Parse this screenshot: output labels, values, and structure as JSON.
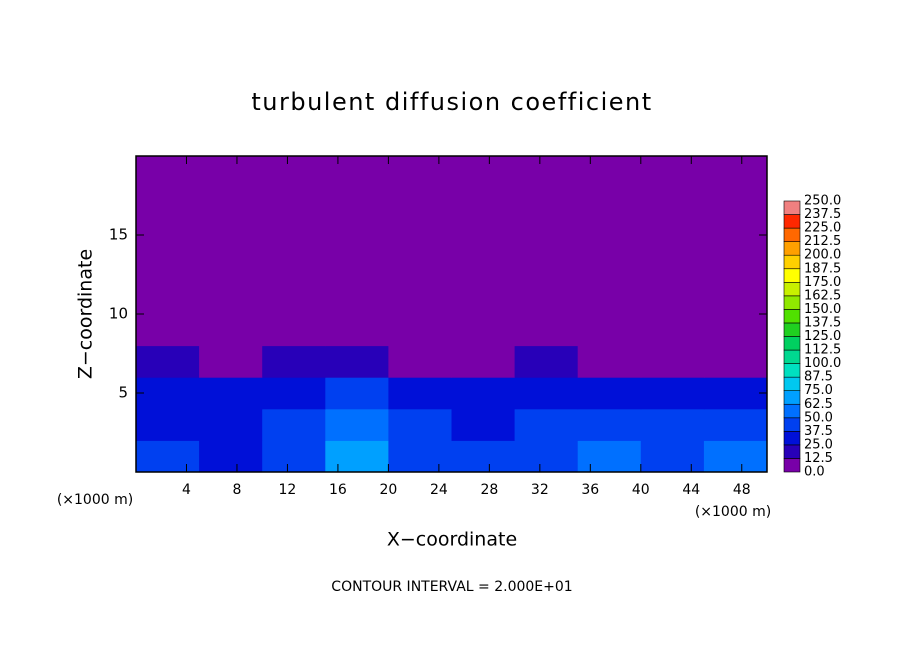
{
  "chart_data": {
    "type": "contour",
    "title": "turbulent diffusion coefficient",
    "xlabel": "X−coordinate",
    "ylabel": "Z−coordinate",
    "x_unit_labels": [
      "(×1000 m)",
      "(×1000 m)"
    ],
    "annotation": "CONTOUR INTERVAL = 2.000E+01",
    "xlim": [
      0,
      50
    ],
    "xticks": [
      4,
      8,
      12,
      16,
      20,
      24,
      28,
      32,
      36,
      40,
      44,
      48
    ],
    "ylim": [
      0,
      20
    ],
    "yticks": [
      5,
      10,
      15
    ],
    "x_edges": [
      0,
      5,
      10,
      15,
      20,
      25,
      30,
      35,
      40,
      45,
      50
    ],
    "z_edges": [
      0,
      2,
      4,
      6,
      8,
      20
    ],
    "values": [
      [
        40,
        35,
        45,
        70,
        45,
        40,
        45,
        50,
        45,
        50
      ],
      [
        35,
        30,
        40,
        55,
        40,
        35,
        40,
        45,
        40,
        40
      ],
      [
        30,
        25,
        35,
        40,
        30,
        30,
        35,
        30,
        30,
        35
      ],
      [
        15,
        10,
        15,
        20,
        5,
        5,
        20,
        10,
        5,
        10
      ],
      [
        0,
        0,
        0,
        0,
        0,
        0,
        0,
        0,
        0,
        0
      ]
    ],
    "levels": [
      {
        "value": 0,
        "label": "0.0"
      },
      {
        "value": 12.5,
        "label": "12.5"
      },
      {
        "value": 25,
        "label": "25.0"
      },
      {
        "value": 37.5,
        "label": "37.5"
      },
      {
        "value": 50,
        "label": "50.0"
      },
      {
        "value": 62.5,
        "label": "62.5"
      },
      {
        "value": 75,
        "label": "75.0"
      },
      {
        "value": 87.5,
        "label": "87.5"
      },
      {
        "value": 100,
        "label": "100.0"
      },
      {
        "value": 112.5,
        "label": "112.5"
      },
      {
        "value": 125,
        "label": "125.0"
      },
      {
        "value": 137.5,
        "label": "137.5"
      },
      {
        "value": 150,
        "label": "150.0"
      },
      {
        "value": 162.5,
        "label": "162.5"
      },
      {
        "value": 175,
        "label": "175.0"
      },
      {
        "value": 187.5,
        "label": "187.5"
      },
      {
        "value": 200,
        "label": "200.0"
      },
      {
        "value": 212.5,
        "label": "212.5"
      },
      {
        "value": 225,
        "label": "225.0"
      },
      {
        "value": 237.5,
        "label": "237.5"
      },
      {
        "value": 250,
        "label": "250.0"
      }
    ],
    "colors": [
      "#7800a8",
      "#2800b8",
      "#0010d8",
      "#0040f0",
      "#0070ff",
      "#00a0ff",
      "#00c8f0",
      "#00e0c0",
      "#00d890",
      "#00d060",
      "#20d020",
      "#50e000",
      "#90e800",
      "#c8f000",
      "#ffff00",
      "#ffd000",
      "#ffa000",
      "#ff6800",
      "#ff2800",
      "#f08080"
    ]
  }
}
